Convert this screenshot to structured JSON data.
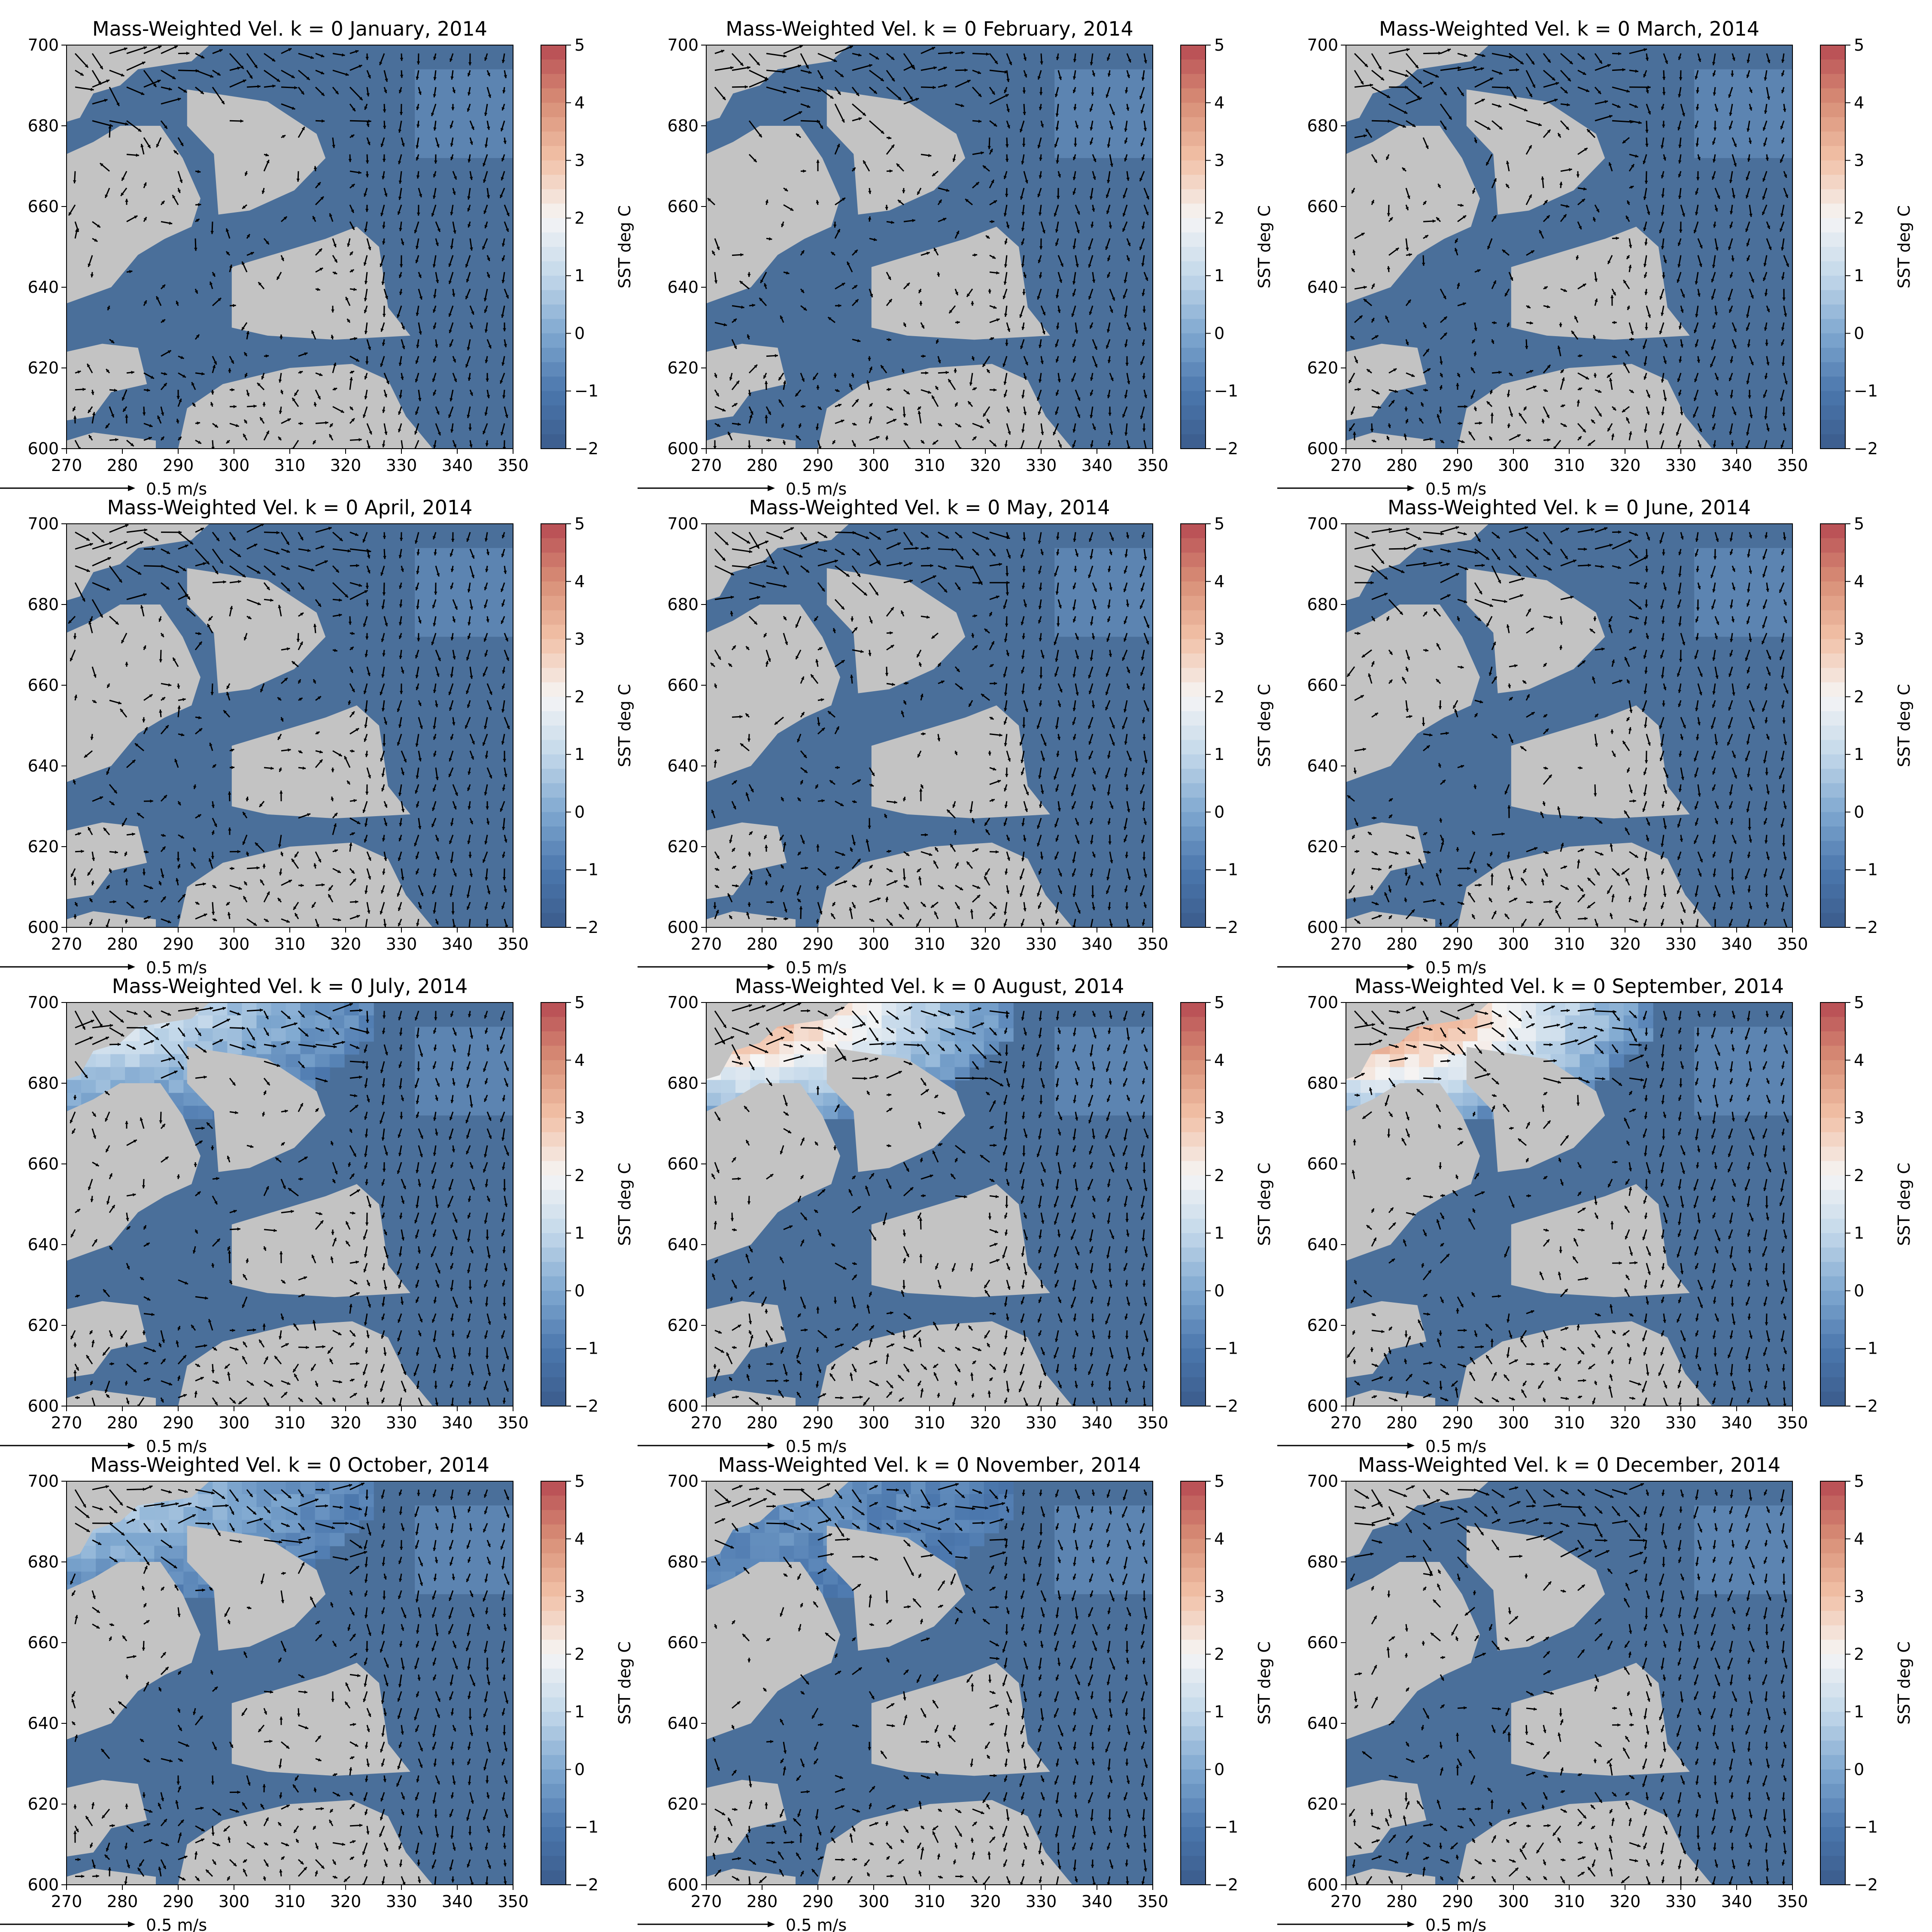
{
  "figure": {
    "type": "grid-of-maps",
    "rows": 4,
    "cols": 3
  },
  "chart_data": [
    {
      "type": "heatmap",
      "title": "Mass-Weighted Vel. k = 0 January, 2014",
      "month": 1,
      "warm_extent": 0.0,
      "xlim": [
        270,
        350
      ],
      "ylim": [
        600,
        700
      ],
      "xticks": [
        270,
        280,
        290,
        300,
        310,
        320,
        330,
        340,
        350
      ],
      "yticks": [
        600,
        620,
        640,
        660,
        680,
        700
      ],
      "colorbar": {
        "label": "SST deg C",
        "ticks": [
          -2,
          -1,
          0,
          1,
          2,
          3,
          4,
          5
        ],
        "range": [
          -2,
          5
        ]
      },
      "quiver_key": "0.5 m/s"
    },
    {
      "type": "heatmap",
      "title": "Mass-Weighted Vel. k = 0 February, 2014",
      "month": 2,
      "warm_extent": 0.0,
      "xlim": [
        270,
        350
      ],
      "ylim": [
        600,
        700
      ],
      "xticks": [
        270,
        280,
        290,
        300,
        310,
        320,
        330,
        340,
        350
      ],
      "yticks": [
        600,
        620,
        640,
        660,
        680,
        700
      ],
      "colorbar": {
        "label": "SST deg C",
        "ticks": [
          -2,
          -1,
          0,
          1,
          2,
          3,
          4,
          5
        ],
        "range": [
          -2,
          5
        ]
      },
      "quiver_key": "0.5 m/s"
    },
    {
      "type": "heatmap",
      "title": "Mass-Weighted Vel. k = 0 March, 2014",
      "month": 3,
      "warm_extent": 0.0,
      "xlim": [
        270,
        350
      ],
      "ylim": [
        600,
        700
      ],
      "xticks": [
        270,
        280,
        290,
        300,
        310,
        320,
        330,
        340,
        350
      ],
      "yticks": [
        600,
        620,
        640,
        660,
        680,
        700
      ],
      "colorbar": {
        "label": "SST deg C",
        "ticks": [
          -2,
          -1,
          0,
          1,
          2,
          3,
          4,
          5
        ],
        "range": [
          -2,
          5
        ]
      },
      "quiver_key": "0.5 m/s"
    },
    {
      "type": "heatmap",
      "title": "Mass-Weighted Vel. k = 0 April, 2014",
      "month": 4,
      "warm_extent": 0.0,
      "xlim": [
        270,
        350
      ],
      "ylim": [
        600,
        700
      ],
      "xticks": [
        270,
        280,
        290,
        300,
        310,
        320,
        330,
        340,
        350
      ],
      "yticks": [
        600,
        620,
        640,
        660,
        680,
        700
      ],
      "colorbar": {
        "label": "SST deg C",
        "ticks": [
          -2,
          -1,
          0,
          1,
          2,
          3,
          4,
          5
        ],
        "range": [
          -2,
          5
        ]
      },
      "quiver_key": "0.5 m/s"
    },
    {
      "type": "heatmap",
      "title": "Mass-Weighted Vel. k = 0 May, 2014",
      "month": 5,
      "warm_extent": 0.0,
      "xlim": [
        270,
        350
      ],
      "ylim": [
        600,
        700
      ],
      "xticks": [
        270,
        280,
        290,
        300,
        310,
        320,
        330,
        340,
        350
      ],
      "yticks": [
        600,
        620,
        640,
        660,
        680,
        700
      ],
      "colorbar": {
        "label": "SST deg C",
        "ticks": [
          -2,
          -1,
          0,
          1,
          2,
          3,
          4,
          5
        ],
        "range": [
          -2,
          5
        ]
      },
      "quiver_key": "0.5 m/s"
    },
    {
      "type": "heatmap",
      "title": "Mass-Weighted Vel. k = 0 June, 2014",
      "month": 6,
      "warm_extent": 0.0,
      "xlim": [
        270,
        350
      ],
      "ylim": [
        600,
        700
      ],
      "xticks": [
        270,
        280,
        290,
        300,
        310,
        320,
        330,
        340,
        350
      ],
      "yticks": [
        600,
        620,
        640,
        660,
        680,
        700
      ],
      "colorbar": {
        "label": "SST deg C",
        "ticks": [
          -2,
          -1,
          0,
          1,
          2,
          3,
          4,
          5
        ],
        "range": [
          -2,
          5
        ]
      },
      "quiver_key": "0.5 m/s"
    },
    {
      "type": "heatmap",
      "title": "Mass-Weighted Vel. k = 0 July, 2014",
      "month": 7,
      "warm_extent": 0.5,
      "xlim": [
        270,
        350
      ],
      "ylim": [
        600,
        700
      ],
      "xticks": [
        270,
        280,
        290,
        300,
        310,
        320,
        330,
        340,
        350
      ],
      "yticks": [
        600,
        620,
        640,
        660,
        680,
        700
      ],
      "colorbar": {
        "label": "SST deg C",
        "ticks": [
          -2,
          -1,
          0,
          1,
          2,
          3,
          4,
          5
        ],
        "range": [
          -2,
          5
        ]
      },
      "quiver_key": "0.5 m/s"
    },
    {
      "type": "heatmap",
      "title": "Mass-Weighted Vel. k = 0 August, 2014",
      "month": 8,
      "warm_extent": 0.9,
      "xlim": [
        270,
        350
      ],
      "ylim": [
        600,
        700
      ],
      "xticks": [
        270,
        280,
        290,
        300,
        310,
        320,
        330,
        340,
        350
      ],
      "yticks": [
        600,
        620,
        640,
        660,
        680,
        700
      ],
      "colorbar": {
        "label": "SST deg C",
        "ticks": [
          -2,
          -1,
          0,
          1,
          2,
          3,
          4,
          5
        ],
        "range": [
          -2,
          5
        ]
      },
      "quiver_key": "0.5 m/s"
    },
    {
      "type": "heatmap",
      "title": "Mass-Weighted Vel. k = 0 September, 2014",
      "month": 9,
      "warm_extent": 1.0,
      "xlim": [
        270,
        350
      ],
      "ylim": [
        600,
        700
      ],
      "xticks": [
        270,
        280,
        290,
        300,
        310,
        320,
        330,
        340,
        350
      ],
      "yticks": [
        600,
        620,
        640,
        660,
        680,
        700
      ],
      "colorbar": {
        "label": "SST deg C",
        "ticks": [
          -2,
          -1,
          0,
          1,
          2,
          3,
          4,
          5
        ],
        "range": [
          -2,
          5
        ]
      },
      "quiver_key": "0.5 m/s"
    },
    {
      "type": "heatmap",
      "title": "Mass-Weighted Vel. k = 0 October, 2014",
      "month": 10,
      "warm_extent": 0.35,
      "xlim": [
        270,
        350
      ],
      "ylim": [
        600,
        700
      ],
      "xticks": [
        270,
        280,
        290,
        300,
        310,
        320,
        330,
        340,
        350
      ],
      "yticks": [
        600,
        620,
        640,
        660,
        680,
        700
      ],
      "colorbar": {
        "label": "SST deg C",
        "ticks": [
          -2,
          -1,
          0,
          1,
          2,
          3,
          4,
          5
        ],
        "range": [
          -2,
          5
        ]
      },
      "quiver_key": "0.5 m/s"
    },
    {
      "type": "heatmap",
      "title": "Mass-Weighted Vel. k = 0 November, 2014",
      "month": 11,
      "warm_extent": 0.12,
      "xlim": [
        270,
        350
      ],
      "ylim": [
        600,
        700
      ],
      "xticks": [
        270,
        280,
        290,
        300,
        310,
        320,
        330,
        340,
        350
      ],
      "yticks": [
        600,
        620,
        640,
        660,
        680,
        700
      ],
      "colorbar": {
        "label": "SST deg C",
        "ticks": [
          -2,
          -1,
          0,
          1,
          2,
          3,
          4,
          5
        ],
        "range": [
          -2,
          5
        ]
      },
      "quiver_key": "0.5 m/s"
    },
    {
      "type": "heatmap",
      "title": "Mass-Weighted Vel. k = 0 December, 2014",
      "month": 12,
      "warm_extent": 0.0,
      "xlim": [
        270,
        350
      ],
      "ylim": [
        600,
        700
      ],
      "xticks": [
        270,
        280,
        290,
        300,
        310,
        320,
        330,
        340,
        350
      ],
      "yticks": [
        600,
        620,
        640,
        660,
        680,
        700
      ],
      "colorbar": {
        "label": "SST deg C",
        "ticks": [
          -2,
          -1,
          0,
          1,
          2,
          3,
          4,
          5
        ],
        "range": [
          -2,
          5
        ]
      },
      "quiver_key": "0.5 m/s"
    }
  ],
  "colors": {
    "land": "#c3c3c3",
    "ocean_cold": "#4a6f9a",
    "ocean_mid": "#6b95c4",
    "arrow": "#000000",
    "colormap": [
      "#3b5b8c",
      "#4b77ad",
      "#7fa8d0",
      "#c3d8ea",
      "#f5f5f5",
      "#f2c2a8",
      "#d88e77",
      "#b74a52"
    ]
  }
}
